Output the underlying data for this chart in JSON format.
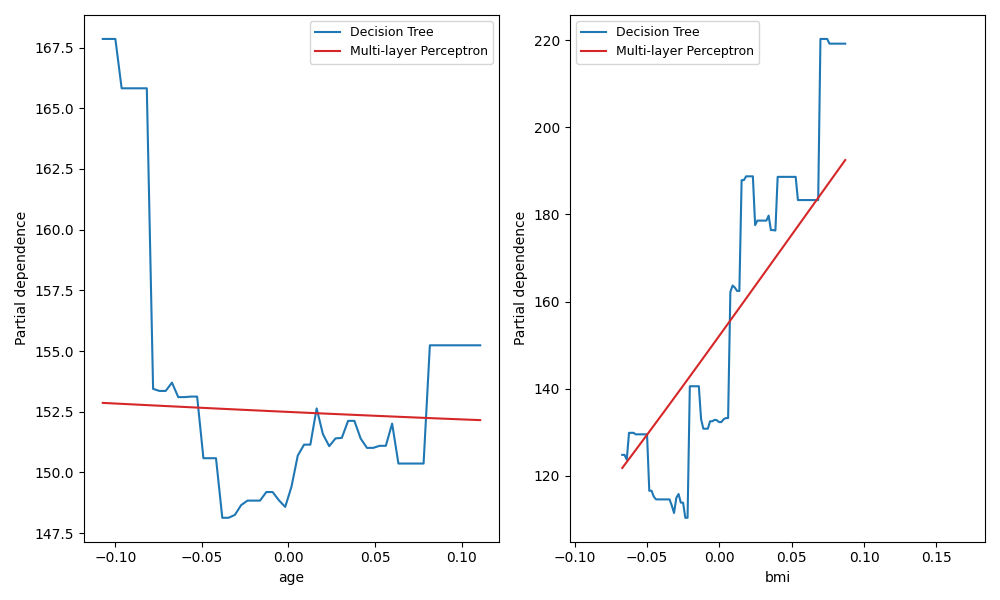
{
  "features": [
    "age",
    "bmi"
  ],
  "ylabel": "Partial dependence",
  "dt_color": "#1f77b4",
  "mlp_color": "#d62728",
  "dt_label": "Decision Tree",
  "mlp_label": "Multi-layer Perceptron",
  "figsize": [
    10.0,
    6.0
  ],
  "dpi": 100
}
